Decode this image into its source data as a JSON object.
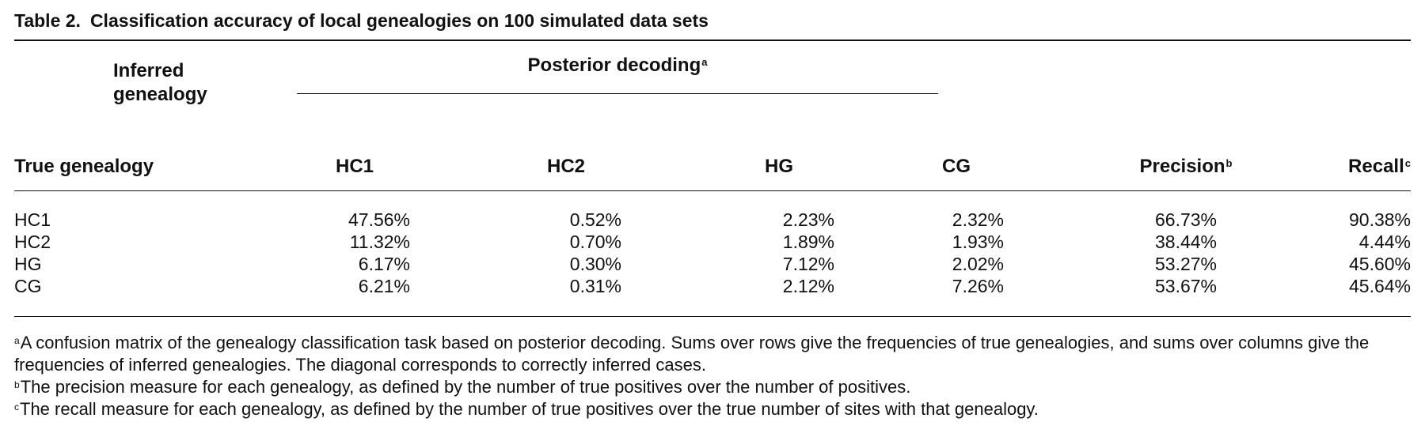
{
  "table": {
    "label": "Table 2.",
    "title": "Classification accuracy of local genealogies on 100 simulated data sets",
    "inferred_header": "Inferred genealogy",
    "group_header": "Posterior decoding",
    "group_header_mark": "a",
    "row_header": "True genealogy",
    "columns": {
      "hc1": "HC1",
      "hc2": "HC2",
      "hg": "HG",
      "cg": "CG",
      "precision": "Precision",
      "precision_mark": "b",
      "recall": "Recall",
      "recall_mark": "c"
    },
    "rows": [
      {
        "name": "HC1",
        "hc1": "47.56%",
        "hc2": "0.52%",
        "hg": "2.23%",
        "cg": "2.32%",
        "precision": "66.73%",
        "recall": "90.38%"
      },
      {
        "name": "HC2",
        "hc1": "11.32%",
        "hc2": "0.70%",
        "hg": "1.89%",
        "cg": "1.93%",
        "precision": "38.44%",
        "recall": "4.44%"
      },
      {
        "name": "HG",
        "hc1": "6.17%",
        "hc2": "0.30%",
        "hg": "7.12%",
        "cg": "2.02%",
        "precision": "53.27%",
        "recall": "45.60%"
      },
      {
        "name": "CG",
        "hc1": "6.21%",
        "hc2": "0.31%",
        "hg": "2.12%",
        "cg": "7.26%",
        "precision": "53.67%",
        "recall": "45.64%"
      }
    ]
  },
  "footnotes": [
    {
      "mark": "a",
      "text": "A confusion matrix of the genealogy classification task based on posterior decoding. Sums over rows give the frequencies of true genealogies, and sums over columns give the frequencies of inferred genealogies. The diagonal corresponds to correctly inferred cases."
    },
    {
      "mark": "b",
      "text": "The precision measure for each genealogy, as defined by the number of true positives over the number of positives."
    },
    {
      "mark": "c",
      "text": "The recall measure for each genealogy, as defined by the number of true positives over the true number of sites with that genealogy."
    }
  ]
}
